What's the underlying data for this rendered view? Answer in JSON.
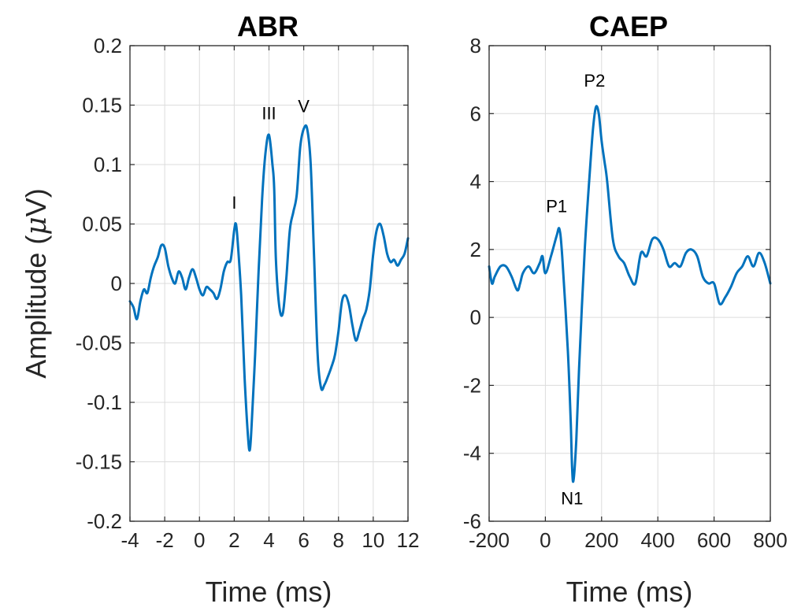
{
  "colors": {
    "series": "#0072BD"
  },
  "ylabel": {
    "pre": "Amplitude (",
    "mu": "μ",
    "post": "V)"
  },
  "chart_data": [
    {
      "type": "line",
      "title": "ABR",
      "xlabel": "Time (ms)",
      "xlim": [
        -4,
        12
      ],
      "ylim": [
        -0.2,
        0.2
      ],
      "grid": true,
      "xticks": [
        -4,
        -2,
        0,
        2,
        4,
        6,
        8,
        10,
        12
      ],
      "yticks": [
        -0.2,
        -0.15,
        -0.1,
        -0.05,
        0,
        0.05,
        0.1,
        0.15,
        0.2
      ],
      "xtick_labels": [
        "-4",
        "-2",
        "0",
        "2",
        "4",
        "6",
        "8",
        "10",
        "12"
      ],
      "ytick_labels": [
        "-0.2",
        "-0.15",
        "-0.1",
        "-0.05",
        "0",
        "0.05",
        "0.1",
        "0.15",
        "0.2"
      ],
      "series": [
        {
          "x": [
            -4.0,
            -3.8,
            -3.6,
            -3.4,
            -3.2,
            -3.0,
            -2.8,
            -2.6,
            -2.4,
            -2.2,
            -2.0,
            -1.8,
            -1.6,
            -1.4,
            -1.2,
            -1.0,
            -0.8,
            -0.6,
            -0.4,
            -0.2,
            0.0,
            0.2,
            0.4,
            0.6,
            0.8,
            1.0,
            1.2,
            1.4,
            1.6,
            1.8,
            2.0,
            2.1,
            2.2,
            2.4,
            2.6,
            2.8,
            2.9,
            3.0,
            3.2,
            3.4,
            3.6,
            3.8,
            4.0,
            4.2,
            4.3,
            4.4,
            4.6,
            4.8,
            5.0,
            5.2,
            5.4,
            5.6,
            5.8,
            6.0,
            6.2,
            6.4,
            6.6,
            6.8,
            7.0,
            7.2,
            7.4,
            7.6,
            7.8,
            8.0,
            8.2,
            8.4,
            8.6,
            8.8,
            9.0,
            9.2,
            9.4,
            9.6,
            9.8,
            10.0,
            10.2,
            10.4,
            10.6,
            10.8,
            11.0,
            11.2,
            11.4,
            11.6,
            11.8,
            12.0
          ],
          "y": [
            -0.015,
            -0.02,
            -0.03,
            -0.015,
            -0.005,
            -0.008,
            0.005,
            0.015,
            0.022,
            0.032,
            0.03,
            0.015,
            0.005,
            0.0,
            0.01,
            0.005,
            -0.005,
            0.005,
            0.012,
            0.005,
            -0.005,
            -0.01,
            -0.003,
            -0.005,
            -0.008,
            -0.013,
            -0.005,
            0.01,
            0.018,
            0.02,
            0.045,
            0.05,
            0.035,
            -0.01,
            -0.08,
            -0.13,
            -0.14,
            -0.12,
            -0.06,
            0.01,
            0.07,
            0.11,
            0.125,
            0.1,
            0.08,
            0.02,
            -0.02,
            -0.025,
            0.005,
            0.045,
            0.06,
            0.075,
            0.115,
            0.13,
            0.13,
            0.1,
            0.02,
            -0.06,
            -0.088,
            -0.085,
            -0.078,
            -0.07,
            -0.06,
            -0.04,
            -0.015,
            -0.01,
            -0.018,
            -0.035,
            -0.048,
            -0.04,
            -0.03,
            -0.022,
            -0.005,
            0.025,
            0.045,
            0.05,
            0.04,
            0.025,
            0.018,
            0.02,
            0.015,
            0.02,
            0.025,
            0.038
          ]
        }
      ],
      "annotations": [
        {
          "text": "I",
          "x": 2.0,
          "y": 0.063
        },
        {
          "text": "III",
          "x": 4.0,
          "y": 0.138
        },
        {
          "text": "V",
          "x": 6.0,
          "y": 0.144
        }
      ]
    },
    {
      "type": "line",
      "title": "CAEP",
      "xlabel": "Time (ms)",
      "xlim": [
        -200,
        800
      ],
      "ylim": [
        -6,
        8
      ],
      "grid": true,
      "xticks": [
        -200,
        0,
        200,
        400,
        600,
        800
      ],
      "yticks": [
        -6,
        -4,
        -2,
        0,
        2,
        4,
        6,
        8
      ],
      "xtick_labels": [
        "-200",
        "0",
        "200",
        "400",
        "600",
        "800"
      ],
      "ytick_labels": [
        "-6",
        "-4",
        "-2",
        "0",
        "2",
        "4",
        "6",
        "8"
      ],
      "series": [
        {
          "x": [
            -200,
            -190,
            -180,
            -160,
            -140,
            -120,
            -100,
            -90,
            -80,
            -60,
            -40,
            -20,
            -10,
            0,
            20,
            40,
            50,
            60,
            80,
            90,
            95,
            100,
            110,
            120,
            140,
            160,
            170,
            180,
            190,
            200,
            210,
            220,
            240,
            260,
            280,
            300,
            320,
            340,
            360,
            380,
            400,
            420,
            440,
            460,
            480,
            500,
            520,
            540,
            560,
            580,
            600,
            620,
            640,
            660,
            680,
            700,
            720,
            740,
            760,
            780,
            800
          ],
          "y": [
            1.5,
            1.0,
            1.2,
            1.5,
            1.5,
            1.2,
            0.8,
            1.0,
            1.3,
            1.5,
            1.3,
            1.6,
            1.8,
            1.3,
            1.8,
            2.4,
            2.6,
            1.8,
            -1.0,
            -3.0,
            -4.4,
            -4.8,
            -3.6,
            -1.5,
            2.0,
            4.5,
            5.6,
            6.2,
            6.0,
            5.2,
            4.6,
            4.0,
            2.3,
            1.8,
            1.6,
            1.2,
            1.0,
            1.9,
            1.8,
            2.3,
            2.3,
            2.0,
            1.5,
            1.6,
            1.5,
            1.9,
            2.0,
            1.8,
            1.2,
            1.0,
            1.0,
            0.4,
            0.6,
            0.9,
            1.3,
            1.5,
            1.8,
            1.5,
            1.9,
            1.6,
            1.0
          ]
        }
      ],
      "annotations": [
        {
          "text": "P1",
          "x": 40,
          "y": 3.1
        },
        {
          "text": "P2",
          "x": 175,
          "y": 6.8
        },
        {
          "text": "N1",
          "x": 95,
          "y": -5.5
        }
      ]
    }
  ]
}
